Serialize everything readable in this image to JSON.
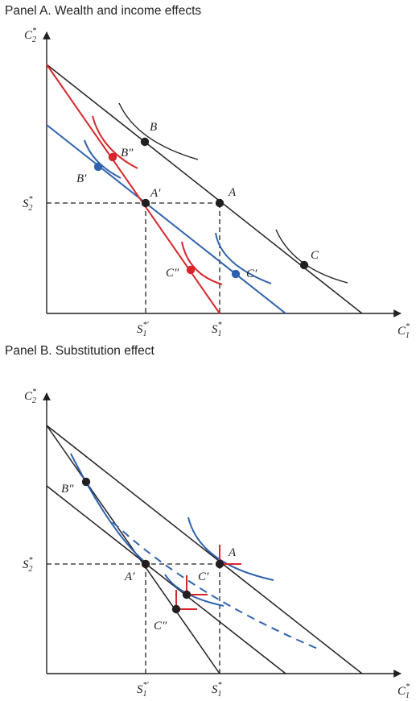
{
  "panel_a": {
    "title": "Panel A. Wealth and income effects",
    "axes": {
      "y": {
        "base": "C",
        "sub": "2",
        "sup": "*"
      },
      "x": {
        "base": "C",
        "sub": "1",
        "sup": "*"
      }
    },
    "ticks": {
      "s2": {
        "base": "S",
        "sub": "2",
        "sup": "*"
      },
      "s1_prime": {
        "base": "S",
        "sub": "1",
        "sup": "*′"
      },
      "s1": {
        "base": "S",
        "sub": "1",
        "sup": "*"
      }
    },
    "points": {
      "A": "A",
      "B": "B",
      "C": "C",
      "A_prime": "A′",
      "B_prime": "B′",
      "C_prime": "C′",
      "B_dprime": "B″",
      "C_dprime": "C″"
    }
  },
  "panel_b": {
    "title": "Panel B. Substitution effect",
    "axes": {
      "y": {
        "base": "C",
        "sub": "2",
        "sup": "*"
      },
      "x": {
        "base": "C",
        "sub": "1",
        "sup": "*"
      }
    },
    "ticks": {
      "s2": {
        "base": "S",
        "sub": "2",
        "sup": "*"
      },
      "s1_prime": {
        "base": "S",
        "sub": "1",
        "sup": "*′"
      },
      "s1": {
        "base": "S",
        "sub": "1",
        "sup": "*"
      }
    },
    "points": {
      "A": "A",
      "A_prime": "A′",
      "B_dprime": "B″",
      "C_prime": "C′",
      "C_dprime": "C″"
    }
  },
  "colors": {
    "black": "#231f20",
    "red": "#d7262b",
    "blue": "#2e62ae"
  }
}
